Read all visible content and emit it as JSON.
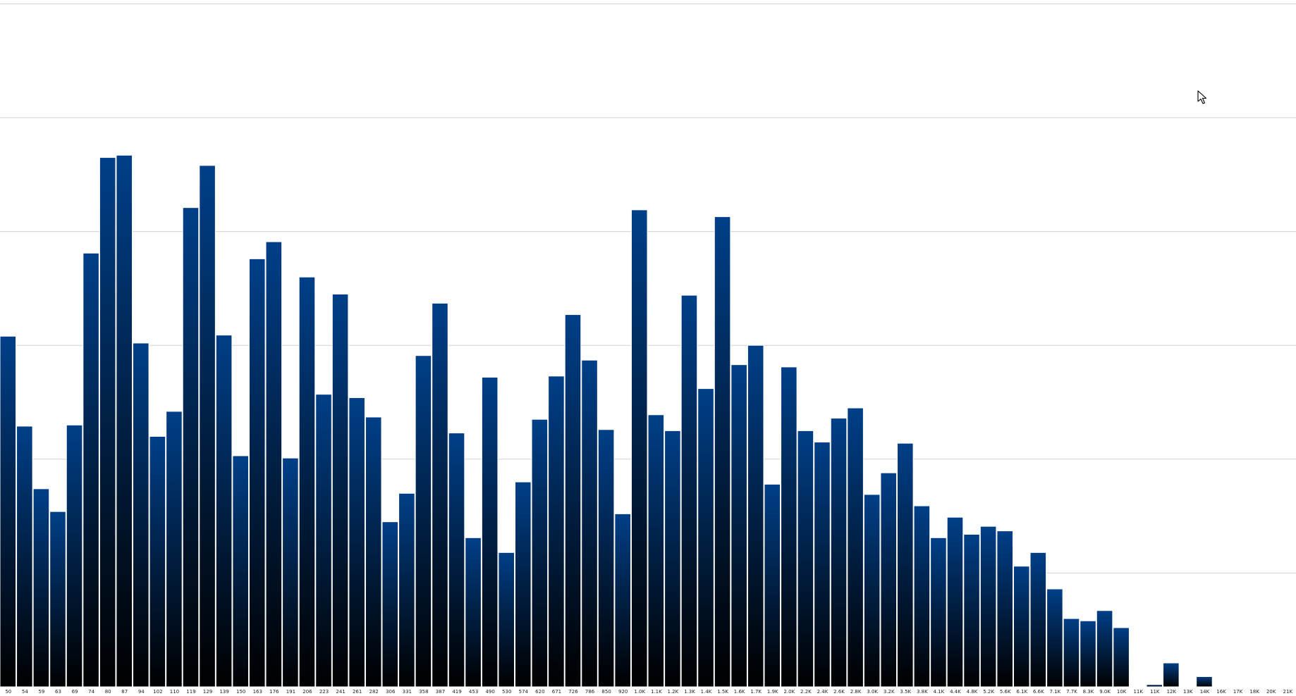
{
  "chart_data": {
    "type": "bar",
    "title": "",
    "xlabel": "",
    "ylabel": "",
    "ylim": [
      0,
      6
    ],
    "gridlines": [
      1,
      2,
      3,
      4,
      5,
      6
    ],
    "grid": true,
    "legend": "none",
    "colors": {
      "bar_top": "#003f88",
      "bar_bottom": "#000000",
      "grid": "#d3d3d3"
    },
    "categories": [
      "50",
      "54",
      "59",
      "63",
      "69",
      "74",
      "80",
      "87",
      "94",
      "102",
      "110",
      "119",
      "129",
      "139",
      "150",
      "163",
      "176",
      "191",
      "206",
      "223",
      "241",
      "261",
      "282",
      "306",
      "331",
      "358",
      "387",
      "419",
      "453",
      "490",
      "530",
      "574",
      "620",
      "671",
      "726",
      "786",
      "850",
      "920",
      "1.0K",
      "1.1K",
      "1.2K",
      "1.3K",
      "1.4K",
      "1.5K",
      "1.6K",
      "1.7K",
      "1.9K",
      "2.0K",
      "2.2K",
      "2.4K",
      "2.6K",
      "2.8K",
      "3.0K",
      "3.2K",
      "3.5K",
      "3.8K",
      "4.1K",
      "4.4K",
      "4.8K",
      "5.2K",
      "5.6K",
      "6.1K",
      "6.6K",
      "7.1K",
      "7.7K",
      "8.3K",
      "9.0K",
      "10K",
      "11K",
      "11K",
      "12K",
      "13K",
      "14K",
      "16K",
      "17K",
      "18K",
      "20K",
      "21K"
    ],
    "values": [
      3.08,
      2.29,
      1.74,
      1.54,
      2.3,
      3.81,
      4.65,
      4.67,
      3.02,
      2.2,
      2.42,
      4.21,
      4.58,
      3.09,
      2.03,
      3.76,
      3.91,
      2.01,
      3.6,
      2.57,
      3.45,
      2.54,
      2.37,
      1.45,
      1.7,
      2.91,
      3.37,
      2.23,
      1.31,
      2.72,
      1.18,
      1.8,
      2.35,
      2.73,
      3.27,
      2.87,
      2.26,
      1.52,
      4.19,
      2.39,
      2.25,
      3.44,
      2.62,
      4.13,
      2.83,
      3.0,
      1.78,
      2.81,
      2.25,
      2.15,
      2.36,
      2.45,
      1.69,
      1.88,
      2.14,
      1.59,
      1.31,
      1.49,
      1.34,
      1.41,
      1.37,
      1.06,
      1.18,
      0.86,
      0.6,
      0.58,
      0.67,
      0.52,
      0,
      0.02,
      0.21,
      0,
      0.09,
      0,
      0,
      0,
      0,
      0
    ]
  },
  "cursor": {
    "icon": "arrow-cursor-icon"
  }
}
